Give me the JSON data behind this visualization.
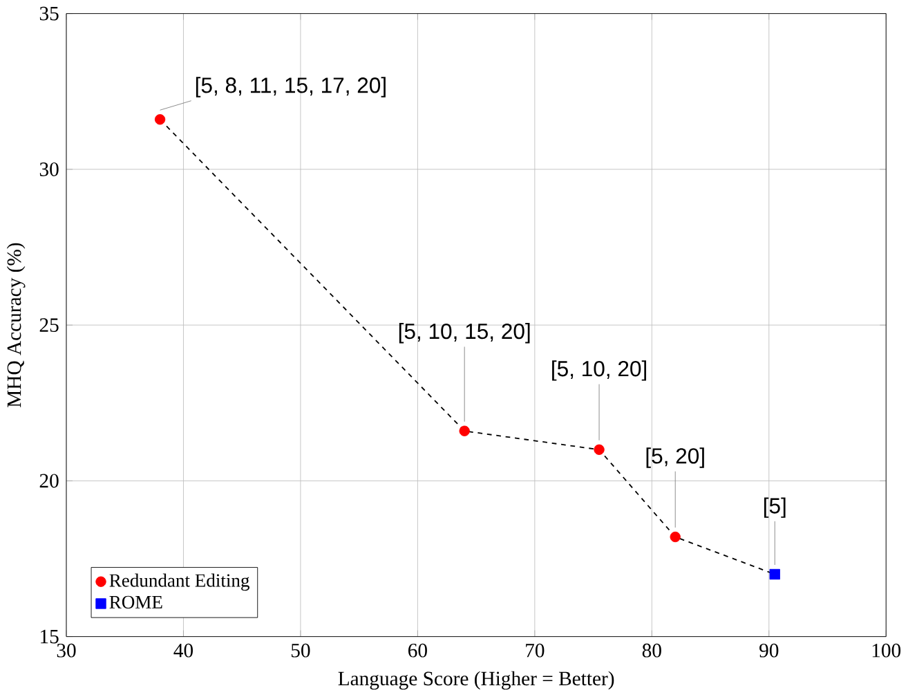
{
  "chart_data": {
    "type": "scatter",
    "xlabel": "Language Score (Higher = Better)",
    "ylabel": "MHQ Accuracy (%)",
    "xlim": [
      30,
      100
    ],
    "ylim": [
      15,
      35
    ],
    "xticks": [
      30,
      40,
      50,
      60,
      70,
      80,
      90,
      100
    ],
    "yticks": [
      15,
      20,
      25,
      30,
      35
    ],
    "grid": true,
    "legend": "bottom left",
    "series": [
      {
        "type": "line",
        "color": "#000000",
        "line_style": "dashed",
        "marker": "none",
        "x": [
          38,
          64,
          75.5,
          82,
          90.5
        ],
        "values": [
          31.6,
          21.6,
          21.0,
          18.2,
          17.0
        ]
      },
      {
        "name": "Redundant Editing",
        "color": "#ff0000",
        "marker": "circle",
        "x": [
          38,
          64,
          75.5,
          82
        ],
        "values": [
          31.6,
          21.6,
          21.0,
          18.2
        ]
      },
      {
        "name": "ROME",
        "color": "#0000ff",
        "marker": "square",
        "x": [
          90.5
        ],
        "values": [
          17.0
        ]
      }
    ],
    "annotations": [
      {
        "text": "[5, 8, 11, 15, 17, 20]",
        "x": 38,
        "y": 31.6
      },
      {
        "text": "[5, 10, 15, 20]",
        "x": 64,
        "y": 21.6
      },
      {
        "text": "[5, 10, 20]",
        "x": 75.5,
        "y": 21.0
      },
      {
        "text": "[5, 20]",
        "x": 82,
        "y": 18.2
      },
      {
        "text": "[5]",
        "x": 90.5,
        "y": 17.0
      }
    ]
  }
}
